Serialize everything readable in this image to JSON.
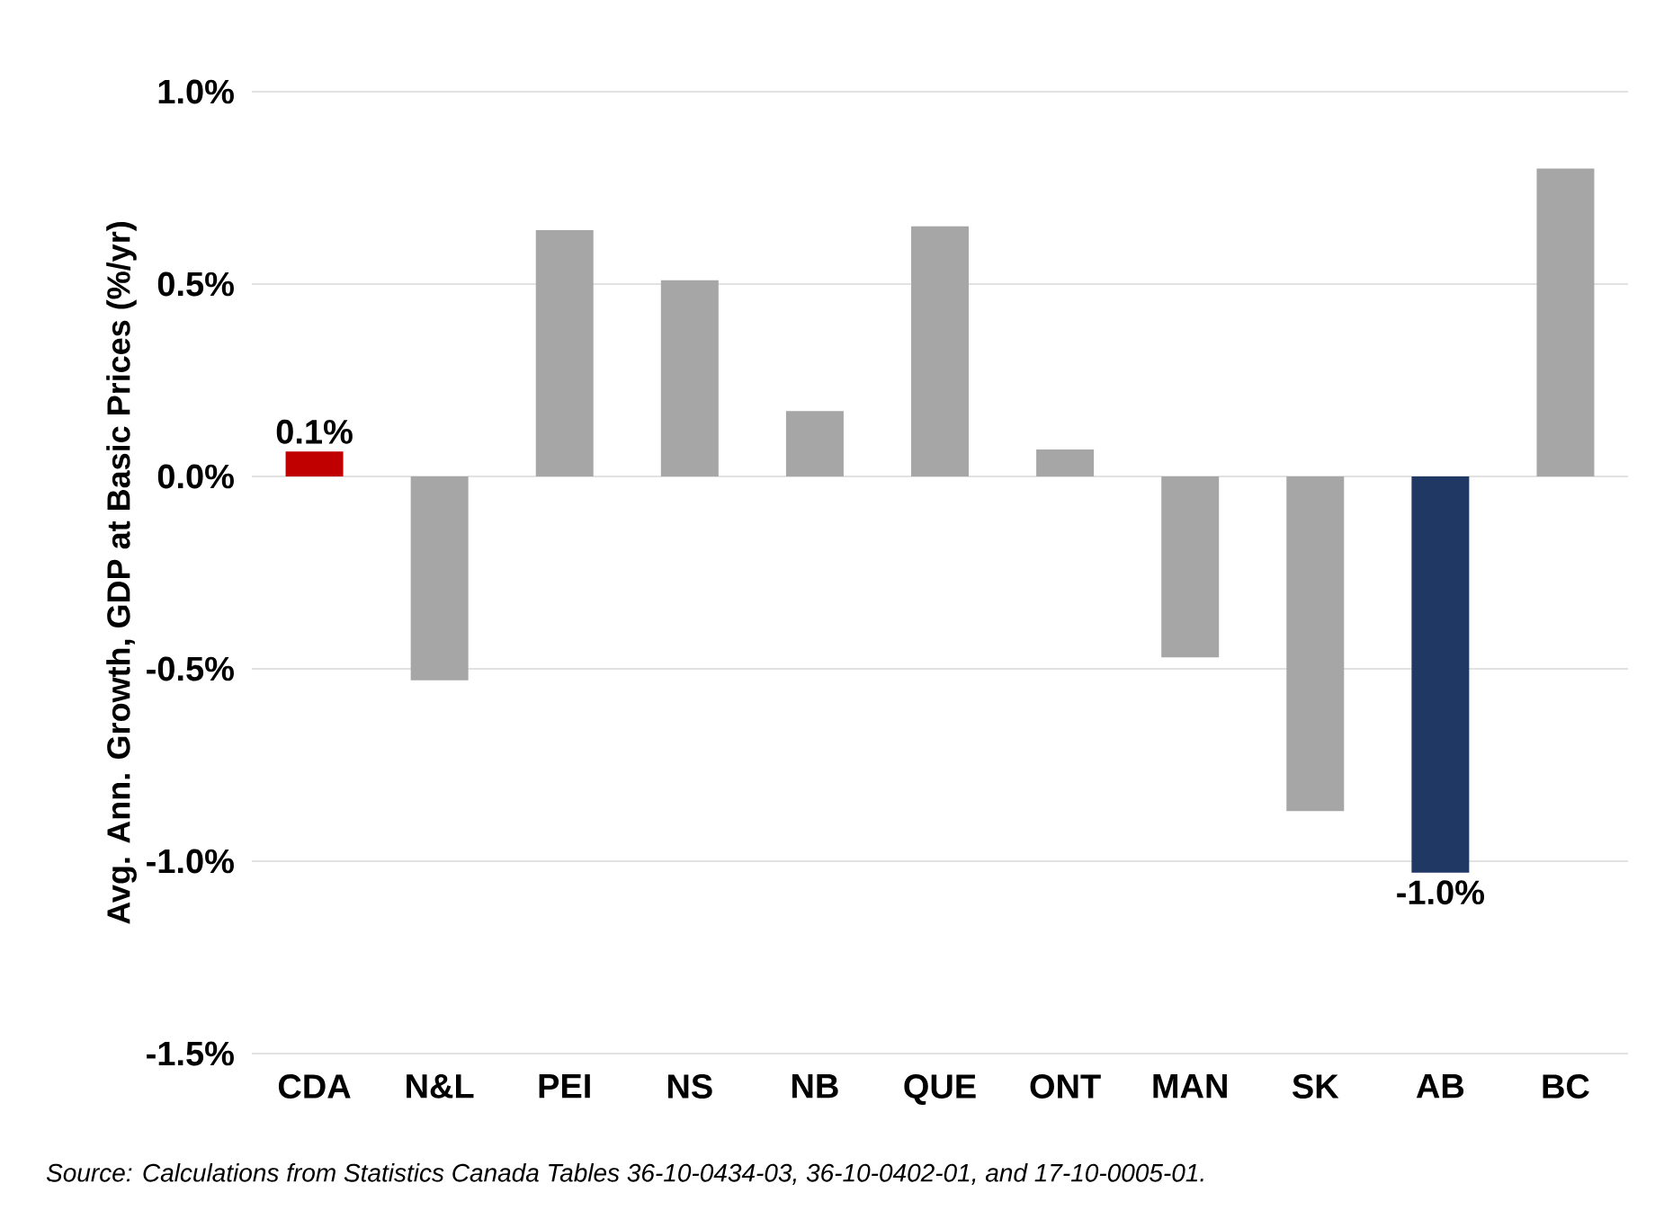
{
  "chart_data": {
    "type": "bar",
    "ylabel": "Avg. Ann. Growth, GDP at Basic Prices (%/yr)",
    "categories": [
      "CDA",
      "N&L",
      "PEI",
      "NS",
      "NB",
      "QUE",
      "ONT",
      "MAN",
      "SK",
      "AB",
      "BC"
    ],
    "values": [
      0.065,
      -0.53,
      0.64,
      0.51,
      0.17,
      0.65,
      0.07,
      -0.47,
      -0.87,
      -1.03,
      0.8
    ],
    "colors": [
      "#c00000",
      "#a6a6a6",
      "#a6a6a6",
      "#a6a6a6",
      "#a6a6a6",
      "#a6a6a6",
      "#a6a6a6",
      "#a6a6a6",
      "#a6a6a6",
      "#203864",
      "#a6a6a6"
    ],
    "value_labels": [
      "0.1%",
      null,
      null,
      null,
      null,
      null,
      null,
      null,
      null,
      "-1.0%",
      null
    ],
    "ylim": [
      -1.5,
      1.0
    ],
    "yticks": [
      {
        "value": -1.5,
        "label": "-1.5%"
      },
      {
        "value": -1.0,
        "label": "-1.0%"
      },
      {
        "value": -0.5,
        "label": "-0.5%"
      },
      {
        "value": 0.0,
        "label": "0.0%"
      },
      {
        "value": 0.5,
        "label": "0.5%"
      },
      {
        "value": 1.0,
        "label": "1.0%"
      }
    ],
    "grid": "y",
    "annotations": [
      "Source: Calculations from Statistics Canada Tables 36-10-0434-03, 36-10-0402-01, and 17-10-0005-01."
    ]
  }
}
